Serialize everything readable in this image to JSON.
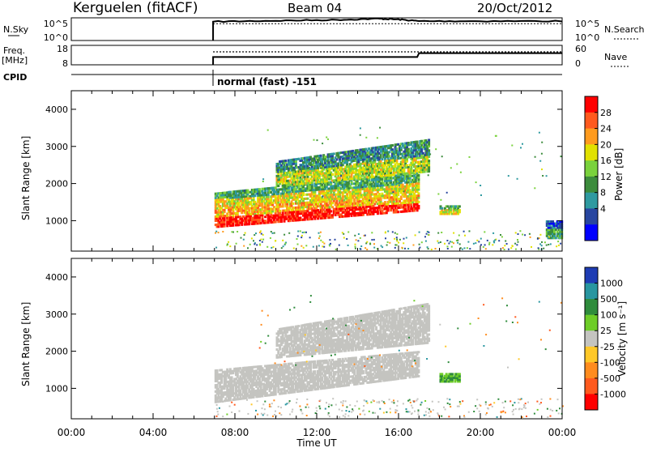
{
  "header": {
    "station": "Kerguelen (fitACF)",
    "beam": "Beam 04",
    "date": "20/Oct/2012"
  },
  "ctrl": {
    "nsky_label": "N.Sky",
    "nsky_ticks": [
      "10^5",
      "10^0"
    ],
    "nsearch_label": "N.Search",
    "nsearch_ticks": [
      "10^5",
      "10^0"
    ],
    "freq_label_1": "Freq.",
    "freq_label_2": "[MHz]",
    "freq_ticks": [
      "18",
      "8"
    ],
    "nave_label": "Nave",
    "nave_ticks": [
      "60",
      "0"
    ],
    "cpid_label": "CPID",
    "cpid_text": "normal (fast) -151"
  },
  "axes": {
    "ylabel": "Slant Range [km]",
    "xlabel": "Time UT",
    "yticks": [
      "4000",
      "3000",
      "2000",
      "1000"
    ],
    "xticks": [
      "00:00",
      "04:00",
      "08:00",
      "12:00",
      "16:00",
      "20:00",
      "00:00"
    ]
  },
  "power_bar": {
    "label": "Power [dB]",
    "ticks": [
      "28",
      "24",
      "20",
      "16",
      "12",
      "8",
      "4"
    ],
    "colors": [
      "#ff0000",
      "#ff5a1e",
      "#ff9b1e",
      "#e1e100",
      "#7ad23c",
      "#3c8c3c",
      "#2f9aa0",
      "#2846a0",
      "#0000ff"
    ]
  },
  "velocity_bar": {
    "label": "Velocity [m s⁻¹]",
    "ticks": [
      "1000",
      "500",
      "100",
      "25",
      "-25",
      "-100",
      "-500",
      "-1000"
    ],
    "colors": [
      "#1e3cb4",
      "#2896a0",
      "#2f8c3c",
      "#6ecd28",
      "#c4c4c0",
      "#ffc828",
      "#ff8c1e",
      "#ff5a1e",
      "#ff0000"
    ]
  },
  "chart_data": [
    {
      "type": "line",
      "title": "Kerguelen (fitACF) Beam 04 20/Oct/2012",
      "xlabel": "Time UT",
      "series": [
        {
          "name": "N.Sky",
          "x": [
            "00:00",
            "06:55",
            "06:56",
            "10:00",
            "13:00",
            "15:00",
            "16:00",
            "17:00",
            "20:00",
            "24:00"
          ],
          "values": [
            null,
            null,
            30000,
            50000,
            80000,
            150000,
            100000,
            40000,
            40000,
            40000
          ]
        },
        {
          "name": "N.Search",
          "x": [
            "06:56",
            "24:00"
          ],
          "values": [
            10000,
            10000
          ]
        }
      ]
    },
    {
      "type": "line",
      "series": [
        {
          "name": "Freq.",
          "x": [
            "06:56",
            "16:55",
            "17:00",
            "24:00"
          ],
          "values": [
            12,
            12,
            14,
            14
          ]
        },
        {
          "name": "Nave",
          "x": [
            "06:56",
            "24:00"
          ],
          "values": [
            40,
            40
          ]
        }
      ],
      "ylim_freq": [
        8,
        18
      ],
      "ylim_nave": [
        0,
        60
      ]
    },
    {
      "type": "heatmap",
      "quantity": "Power",
      "xlabel": "Time UT",
      "ylabel": "Slant Range [km]",
      "xlim_hours": [
        0,
        24
      ],
      "ylim_km": [
        180,
        4500
      ],
      "clim": [
        0,
        32
      ],
      "bands": [
        {
          "t_start": 7.0,
          "t_end": 17.0,
          "r_low_start": 800,
          "r_low_end": 1250,
          "r_high_start": 1350,
          "r_high_end": 1700,
          "power": 26
        },
        {
          "t_start": 7.0,
          "t_end": 17.0,
          "r_low_start": 1350,
          "r_low_end": 1700,
          "r_high_start": 1750,
          "r_high_end": 2300,
          "power": 16
        },
        {
          "t_start": 10.0,
          "t_end": 17.5,
          "r_low_start": 1900,
          "r_low_end": 2300,
          "r_high_start": 2600,
          "r_high_end": 3200,
          "power": 14
        },
        {
          "t_start": 18.0,
          "t_end": 19.0,
          "r_low_start": 1150,
          "r_low_end": 1150,
          "r_high_start": 1400,
          "r_high_end": 1400,
          "power": 16
        },
        {
          "t_start": 23.2,
          "t_end": 24.0,
          "r_low_start": 500,
          "r_low_end": 500,
          "r_high_start": 1000,
          "r_high_end": 1000,
          "power": 8
        }
      ]
    },
    {
      "type": "heatmap",
      "quantity": "Velocity",
      "xlabel": "Time UT",
      "ylabel": "Slant Range [km]",
      "xlim_hours": [
        0,
        24
      ],
      "ylim_km": [
        180,
        4500
      ],
      "clim": [
        -1000,
        1000
      ],
      "bands": [
        {
          "t_start": 7.0,
          "t_end": 17.0,
          "r_low_start": 600,
          "r_low_end": 1300,
          "r_high_start": 1500,
          "r_high_end": 2000,
          "velocity": 0
        },
        {
          "t_start": 10.0,
          "t_end": 17.5,
          "r_low_start": 1800,
          "r_low_end": 2200,
          "r_high_start": 2600,
          "r_high_end": 3300,
          "velocity": 0
        },
        {
          "t_start": 18.0,
          "t_end": 19.0,
          "r_low_start": 1150,
          "r_low_end": 1150,
          "r_high_start": 1400,
          "r_high_end": 1400,
          "velocity": 100
        }
      ]
    }
  ]
}
